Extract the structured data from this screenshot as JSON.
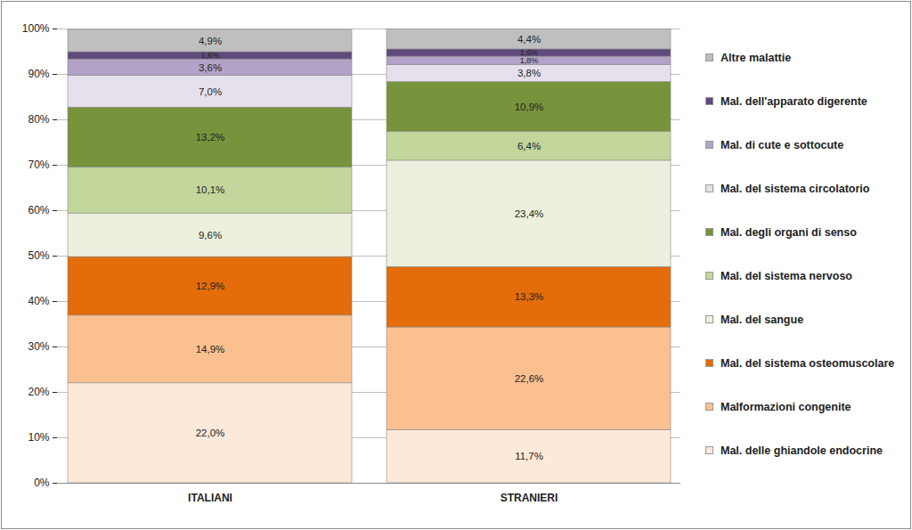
{
  "chart_data": {
    "type": "bar",
    "stacked": true,
    "data_labels": true,
    "grid": true,
    "legend": "right",
    "categories": [
      "ITALIANI",
      "STRANIERI"
    ],
    "ylim": [
      0,
      100
    ],
    "yticks": [
      {
        "value": 0,
        "label": "0%"
      },
      {
        "value": 10,
        "label": "10%"
      },
      {
        "value": 20,
        "label": "20%"
      },
      {
        "value": 30,
        "label": "30%"
      },
      {
        "value": 40,
        "label": "40%"
      },
      {
        "value": 50,
        "label": "50%"
      },
      {
        "value": 60,
        "label": "60%"
      },
      {
        "value": 70,
        "label": "70%"
      },
      {
        "value": 80,
        "label": "80%"
      },
      {
        "value": 90,
        "label": "90%"
      },
      {
        "value": 100,
        "label": "100%"
      }
    ],
    "series": [
      {
        "name": "Mal. delle ghiandole endocrine",
        "color": "#fde9d9",
        "values": [
          22.0,
          11.7
        ],
        "value_labels": [
          "22,0%",
          "11,7%"
        ]
      },
      {
        "name": "Malformazioni congenite",
        "color": "#fac090",
        "values": [
          14.9,
          22.6
        ],
        "value_labels": [
          "14,9%",
          "22,6%"
        ]
      },
      {
        "name": "Mal. del sistema osteomuscolare",
        "color": "#e46c0a",
        "values": [
          12.9,
          13.3
        ],
        "value_labels": [
          "12,9%",
          "13,3%"
        ]
      },
      {
        "name": "Mal.  del sangue",
        "color": "#ebf1de",
        "values": [
          9.6,
          23.4
        ],
        "value_labels": [
          "9,6%",
          "23,4%"
        ]
      },
      {
        "name": "Mal.  del sistema nervoso",
        "color": "#c3d69b",
        "values": [
          10.1,
          6.4
        ],
        "value_labels": [
          "10,1%",
          "6,4%"
        ]
      },
      {
        "name": "Mal.  degli organi di senso",
        "color": "#77933c",
        "values": [
          13.2,
          10.9
        ],
        "value_labels": [
          "13,2%",
          "10,9%"
        ]
      },
      {
        "name": "Mal. del sistema circolatorio",
        "color": "#e6e0ec",
        "values": [
          7.0,
          3.8
        ],
        "value_labels": [
          "7,0%",
          "3,8%"
        ]
      },
      {
        "name": "Mal.  di cute e sottocute",
        "color": "#b3a2c7",
        "values": [
          3.6,
          1.8
        ],
        "value_labels": [
          "3,6%",
          "1,8%"
        ]
      },
      {
        "name": "Mal.  dell'apparato digerente",
        "color": "#604a7b",
        "values": [
          1.6,
          1.6
        ],
        "value_labels": [
          "1,6%",
          "1,6%"
        ]
      },
      {
        "name": "Altre malattie",
        "color": "#bfbfbf",
        "values": [
          4.9,
          4.4
        ],
        "value_labels": [
          "4,9%",
          "4,4%"
        ]
      }
    ]
  }
}
